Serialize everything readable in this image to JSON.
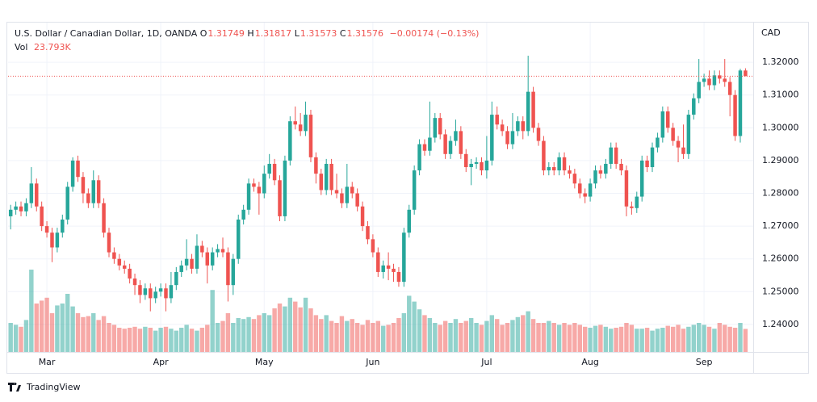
{
  "chart_data": {
    "type": "candlestick",
    "header": {
      "symbol": "U.S. Dollar / Canadian Dollar, 1D, OANDA",
      "ohlc_letters": [
        "O",
        "H",
        "L",
        "C"
      ],
      "change": "−0.00174 (−0.13%)",
      "vol_name": "Vol",
      "vol_value": "23.793K"
    },
    "currency": "CAD",
    "brand": "TradingView",
    "up_color": "#26a69a",
    "down_color": "#ef5350",
    "open": [
      1.273,
      1.275,
      1.276,
      1.2745,
      1.277,
      1.283,
      1.276,
      1.27,
      1.268,
      1.2635,
      1.268,
      1.272,
      1.282,
      1.29,
      1.285,
      1.28,
      1.277,
      1.284,
      1.277,
      1.268,
      1.262,
      1.26,
      1.258,
      1.257,
      1.254,
      1.252,
      1.249,
      1.251,
      1.248,
      1.25,
      1.251,
      1.248,
      1.252,
      1.256,
      1.258,
      1.26,
      1.257,
      1.264,
      1.262,
      1.258,
      1.262,
      1.263,
      1.262,
      1.252,
      1.26,
      1.272,
      1.275,
      1.283,
      1.282,
      1.28,
      1.286,
      1.289,
      1.284,
      1.273,
      1.29,
      1.302,
      1.301,
      1.299,
      1.304,
      1.291,
      1.286,
      1.281,
      1.289,
      1.281,
      1.28,
      1.277,
      1.282,
      1.28,
      1.276,
      1.27,
      1.266,
      1.262,
      1.256,
      1.258,
      1.257,
      1.256,
      1.253,
      1.268,
      1.275,
      1.287,
      1.295,
      1.293,
      1.297,
      1.303,
      1.298,
      1.292,
      1.296,
      1.299,
      1.292,
      1.288,
      1.289,
      1.2895,
      1.287,
      1.29,
      1.304,
      1.301,
      1.299,
      1.295,
      1.299,
      1.302,
      1.299,
      1.311,
      1.3,
      1.296,
      1.287,
      1.288,
      1.287,
      1.291,
      1.287,
      1.286,
      1.283,
      1.28,
      1.279,
      1.283,
      1.287,
      1.286,
      1.289,
      1.294,
      1.289,
      1.287,
      1.276,
      1.2755,
      1.279,
      1.29,
      1.288,
      1.294,
      1.297,
      1.305,
      1.3,
      1.296,
      1.294,
      1.292,
      1.304,
      1.309,
      1.314,
      1.315,
      1.313,
      1.316,
      1.315,
      1.314,
      1.31,
      1.2975,
      1.31749
    ],
    "high": [
      1.2765,
      1.2775,
      1.2775,
      1.2785,
      1.288,
      1.2845,
      1.2775,
      1.2715,
      1.2695,
      1.2695,
      1.2735,
      1.2835,
      1.291,
      1.2915,
      1.2865,
      1.2815,
      1.287,
      1.2855,
      1.2785,
      1.2695,
      1.2635,
      1.2615,
      1.2595,
      1.2585,
      1.2555,
      1.2535,
      1.2525,
      1.2525,
      1.2515,
      1.2525,
      1.2525,
      1.256,
      1.2575,
      1.2595,
      1.266,
      1.2615,
      1.2675,
      1.2655,
      1.2635,
      1.2635,
      1.2645,
      1.2665,
      1.2635,
      1.2615,
      1.2735,
      1.2765,
      1.2845,
      1.2845,
      1.2835,
      1.2885,
      1.292,
      1.2905,
      1.2855,
      1.2915,
      1.3035,
      1.3065,
      1.3045,
      1.308,
      1.3055,
      1.2925,
      1.2875,
      1.2905,
      1.2905,
      1.286,
      1.2815,
      1.289,
      1.2835,
      1.2815,
      1.2775,
      1.2715,
      1.2675,
      1.2635,
      1.2595,
      1.262,
      1.2585,
      1.2575,
      1.2695,
      1.2765,
      1.2885,
      1.2965,
      1.2965,
      1.308,
      1.3045,
      1.3045,
      1.2995,
      1.2975,
      1.3025,
      1.3005,
      1.2935,
      1.2905,
      1.291,
      1.291,
      1.2975,
      1.308,
      1.3065,
      1.3025,
      1.3005,
      1.3045,
      1.3035,
      1.3035,
      1.322,
      1.3125,
      1.3015,
      1.2975,
      1.2895,
      1.2895,
      1.2925,
      1.2925,
      1.2885,
      1.2875,
      1.2845,
      1.2815,
      1.2845,
      1.2885,
      1.2885,
      1.2905,
      1.2955,
      1.2955,
      1.2905,
      1.2885,
      1.2775,
      1.2805,
      1.2915,
      1.2915,
      1.2955,
      1.2985,
      1.3065,
      1.3065,
      1.3015,
      1.2975,
      1.301,
      1.3055,
      1.3105,
      1.321,
      1.3165,
      1.3175,
      1.3175,
      1.3175,
      1.321,
      1.3155,
      1.3115,
      1.318,
      1.31817
    ],
    "low": [
      1.269,
      1.2735,
      1.273,
      1.273,
      1.2755,
      1.2745,
      1.2685,
      1.2665,
      1.259,
      1.262,
      1.2665,
      1.2705,
      1.2805,
      1.2835,
      1.277,
      1.2755,
      1.2755,
      1.2755,
      1.2665,
      1.2605,
      1.2585,
      1.2565,
      1.2555,
      1.2525,
      1.249,
      1.2465,
      1.2475,
      1.244,
      1.2465,
      1.2485,
      1.244,
      1.2465,
      1.2505,
      1.2545,
      1.2565,
      1.2555,
      1.2555,
      1.2605,
      1.2525,
      1.2565,
      1.2605,
      1.2605,
      1.247,
      1.249,
      1.2585,
      1.2705,
      1.2735,
      1.2805,
      1.2735,
      1.2785,
      1.2845,
      1.2825,
      1.2715,
      1.2715,
      1.2885,
      1.2995,
      1.2975,
      1.2975,
      1.2895,
      1.283,
      1.2795,
      1.2795,
      1.2795,
      1.2785,
      1.2755,
      1.2755,
      1.2785,
      1.2745,
      1.2685,
      1.2645,
      1.2605,
      1.2545,
      1.254,
      1.2535,
      1.253,
      1.2515,
      1.2515,
      1.2665,
      1.2735,
      1.2855,
      1.2915,
      1.2915,
      1.2955,
      1.2965,
      1.2905,
      1.2905,
      1.2945,
      1.2905,
      1.2865,
      1.2825,
      1.2875,
      1.2855,
      1.2845,
      1.2885,
      1.2995,
      1.2975,
      1.2935,
      1.2935,
      1.2975,
      1.2965,
      1.2975,
      1.2985,
      1.2945,
      1.2855,
      1.2855,
      1.2855,
      1.2855,
      1.2855,
      1.2845,
      1.2815,
      1.2785,
      1.277,
      1.2775,
      1.2815,
      1.2845,
      1.2845,
      1.2875,
      1.2875,
      1.2855,
      1.273,
      1.2735,
      1.274,
      1.2775,
      1.2865,
      1.2865,
      1.2925,
      1.2955,
      1.2985,
      1.2945,
      1.2895,
      1.2905,
      1.2905,
      1.3025,
      1.3075,
      1.3125,
      1.3115,
      1.3115,
      1.3135,
      1.3125,
      1.3035,
      1.296,
      1.2955,
      1.31573
    ],
    "close": [
      1.275,
      1.276,
      1.2745,
      1.277,
      1.283,
      1.276,
      1.27,
      1.268,
      1.2635,
      1.268,
      1.272,
      1.282,
      1.29,
      1.285,
      1.28,
      1.277,
      1.284,
      1.277,
      1.268,
      1.262,
      1.26,
      1.258,
      1.257,
      1.254,
      1.252,
      1.249,
      1.251,
      1.248,
      1.25,
      1.251,
      1.248,
      1.252,
      1.256,
      1.258,
      1.26,
      1.257,
      1.264,
      1.262,
      1.258,
      1.262,
      1.263,
      1.262,
      1.252,
      1.26,
      1.272,
      1.275,
      1.283,
      1.282,
      1.28,
      1.286,
      1.289,
      1.284,
      1.273,
      1.29,
      1.302,
      1.301,
      1.299,
      1.304,
      1.291,
      1.286,
      1.281,
      1.289,
      1.281,
      1.28,
      1.277,
      1.282,
      1.28,
      1.276,
      1.27,
      1.266,
      1.262,
      1.256,
      1.258,
      1.257,
      1.256,
      1.253,
      1.268,
      1.275,
      1.287,
      1.295,
      1.293,
      1.297,
      1.303,
      1.298,
      1.292,
      1.296,
      1.299,
      1.292,
      1.288,
      1.289,
      1.2895,
      1.287,
      1.29,
      1.304,
      1.301,
      1.299,
      1.295,
      1.299,
      1.302,
      1.299,
      1.311,
      1.3,
      1.296,
      1.287,
      1.288,
      1.287,
      1.291,
      1.287,
      1.286,
      1.283,
      1.28,
      1.279,
      1.283,
      1.287,
      1.286,
      1.289,
      1.294,
      1.289,
      1.287,
      1.276,
      1.2755,
      1.279,
      1.29,
      1.288,
      1.294,
      1.297,
      1.305,
      1.3,
      1.296,
      1.294,
      1.292,
      1.304,
      1.309,
      1.314,
      1.315,
      1.313,
      1.316,
      1.315,
      1.314,
      1.31,
      1.2975,
      1.31749,
      1.31576
    ],
    "volume": [
      30,
      28,
      26,
      33,
      85,
      50,
      53,
      56,
      40,
      48,
      50,
      60,
      47,
      40,
      36,
      37,
      40,
      33,
      37,
      30,
      28,
      25,
      24,
      25,
      26,
      24,
      26,
      25,
      22,
      25,
      26,
      24,
      22,
      25,
      28,
      24,
      22,
      25,
      28,
      64,
      30,
      32,
      40,
      30,
      35,
      34,
      36,
      34,
      38,
      40,
      38,
      45,
      50,
      47,
      56,
      52,
      46,
      56,
      45,
      38,
      34,
      38,
      32,
      30,
      37,
      32,
      34,
      30,
      28,
      33,
      30,
      32,
      27,
      28,
      30,
      35,
      40,
      58,
      52,
      44,
      38,
      35,
      30,
      28,
      32,
      30,
      34,
      30,
      32,
      35,
      30,
      28,
      32,
      38,
      34,
      28,
      30,
      33,
      36,
      38,
      42,
      34,
      30,
      30,
      32,
      30,
      28,
      30,
      28,
      30,
      28,
      26,
      25,
      27,
      28,
      26,
      24,
      25,
      26,
      30,
      28,
      24,
      24,
      25,
      22,
      24,
      25,
      27,
      26,
      28,
      24,
      26,
      28,
      30,
      28,
      26,
      24,
      30,
      28,
      26,
      25,
      30,
      23.793
    ],
    "xlim": [
      -0.5,
      143.5
    ],
    "xticks": [
      {
        "value": 7,
        "label": "Mar"
      },
      {
        "value": 29,
        "label": "Apr"
      },
      {
        "value": 49,
        "label": "May"
      },
      {
        "value": 70,
        "label": "Jun"
      },
      {
        "value": 92,
        "label": "Jul"
      },
      {
        "value": 112,
        "label": "Aug"
      },
      {
        "value": 134,
        "label": "Sep"
      }
    ],
    "ylim": [
      1.2316,
      1.3321
    ],
    "yticks": [
      {
        "value": 1.24,
        "label": "1.24000"
      },
      {
        "value": 1.25,
        "label": "1.25000"
      },
      {
        "value": 1.26,
        "label": "1.26000"
      },
      {
        "value": 1.27,
        "label": "1.27000"
      },
      {
        "value": 1.28,
        "label": "1.28000"
      },
      {
        "value": 1.29,
        "label": "1.29000"
      },
      {
        "value": 1.3,
        "label": "1.30000"
      },
      {
        "value": 1.31,
        "label": "1.31000"
      },
      {
        "value": 1.32,
        "label": "1.32000"
      }
    ],
    "grid": true
  }
}
